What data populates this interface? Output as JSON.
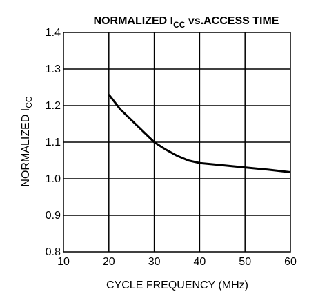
{
  "chart_data": {
    "type": "line",
    "title": {
      "main": "NORMALIZED I",
      "sub": "CC",
      "rest": " vs.ACCESS TIME"
    },
    "xlabel": "CYCLE FREQUENCY (MHz)",
    "ylabel": {
      "main": "NORMALIZED I",
      "sub": "CC"
    },
    "xlim": [
      10,
      60
    ],
    "ylim": [
      0.8,
      1.4
    ],
    "x_ticks": [
      10,
      20,
      30,
      40,
      50,
      60
    ],
    "x_tick_labels": [
      "10",
      "20",
      "30",
      "40",
      "50",
      "60"
    ],
    "y_ticks": [
      0.8,
      0.9,
      1.0,
      1.1,
      1.2,
      1.3,
      1.4
    ],
    "y_tick_labels": [
      "0.8",
      "0.9",
      "1.0",
      "1.1",
      "1.2",
      "1.3",
      "1.4"
    ],
    "grid": true,
    "series": [
      {
        "x": [
          20,
          22.5,
          25,
          27.5,
          30,
          32.5,
          35,
          37.5,
          40,
          45,
          50,
          55,
          60
        ],
        "y": [
          1.23,
          1.19,
          1.16,
          1.13,
          1.1,
          1.08,
          1.063,
          1.05,
          1.043,
          1.037,
          1.031,
          1.025,
          1.018
        ]
      }
    ]
  }
}
